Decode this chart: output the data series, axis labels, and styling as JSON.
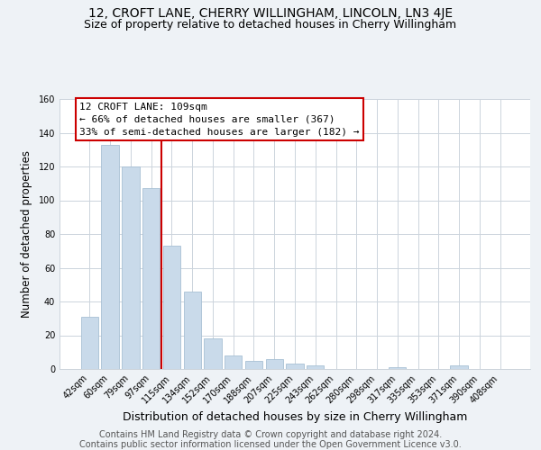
{
  "title": "12, CROFT LANE, CHERRY WILLINGHAM, LINCOLN, LN3 4JE",
  "subtitle": "Size of property relative to detached houses in Cherry Willingham",
  "xlabel": "Distribution of detached houses by size in Cherry Willingham",
  "ylabel": "Number of detached properties",
  "bar_labels": [
    "42sqm",
    "60sqm",
    "79sqm",
    "97sqm",
    "115sqm",
    "134sqm",
    "152sqm",
    "170sqm",
    "188sqm",
    "207sqm",
    "225sqm",
    "243sqm",
    "262sqm",
    "280sqm",
    "298sqm",
    "317sqm",
    "335sqm",
    "353sqm",
    "371sqm",
    "390sqm",
    "408sqm"
  ],
  "bar_values": [
    31,
    133,
    120,
    107,
    73,
    46,
    18,
    8,
    5,
    6,
    3,
    2,
    0,
    0,
    0,
    1,
    0,
    0,
    2,
    0,
    0
  ],
  "bar_color": "#c9daea",
  "bar_edge_color": "#a8c0d4",
  "annotation_line_index": 3.5,
  "annotation_box_text": "12 CROFT LANE: 109sqm\n← 66% of detached houses are smaller (367)\n33% of semi-detached houses are larger (182) →",
  "ylim": [
    0,
    160
  ],
  "yticks": [
    0,
    20,
    40,
    60,
    80,
    100,
    120,
    140,
    160
  ],
  "red_line_color": "#cc0000",
  "box_edge_color": "#cc0000",
  "footer_line1": "Contains HM Land Registry data © Crown copyright and database right 2024.",
  "footer_line2": "Contains public sector information licensed under the Open Government Licence v3.0.",
  "background_color": "#eef2f6",
  "plot_background_color": "#ffffff",
  "grid_color": "#ccd4dc",
  "title_fontsize": 10,
  "subtitle_fontsize": 9,
  "xlabel_fontsize": 9,
  "ylabel_fontsize": 8.5,
  "tick_fontsize": 7,
  "annotation_fontsize": 8,
  "footer_fontsize": 7
}
